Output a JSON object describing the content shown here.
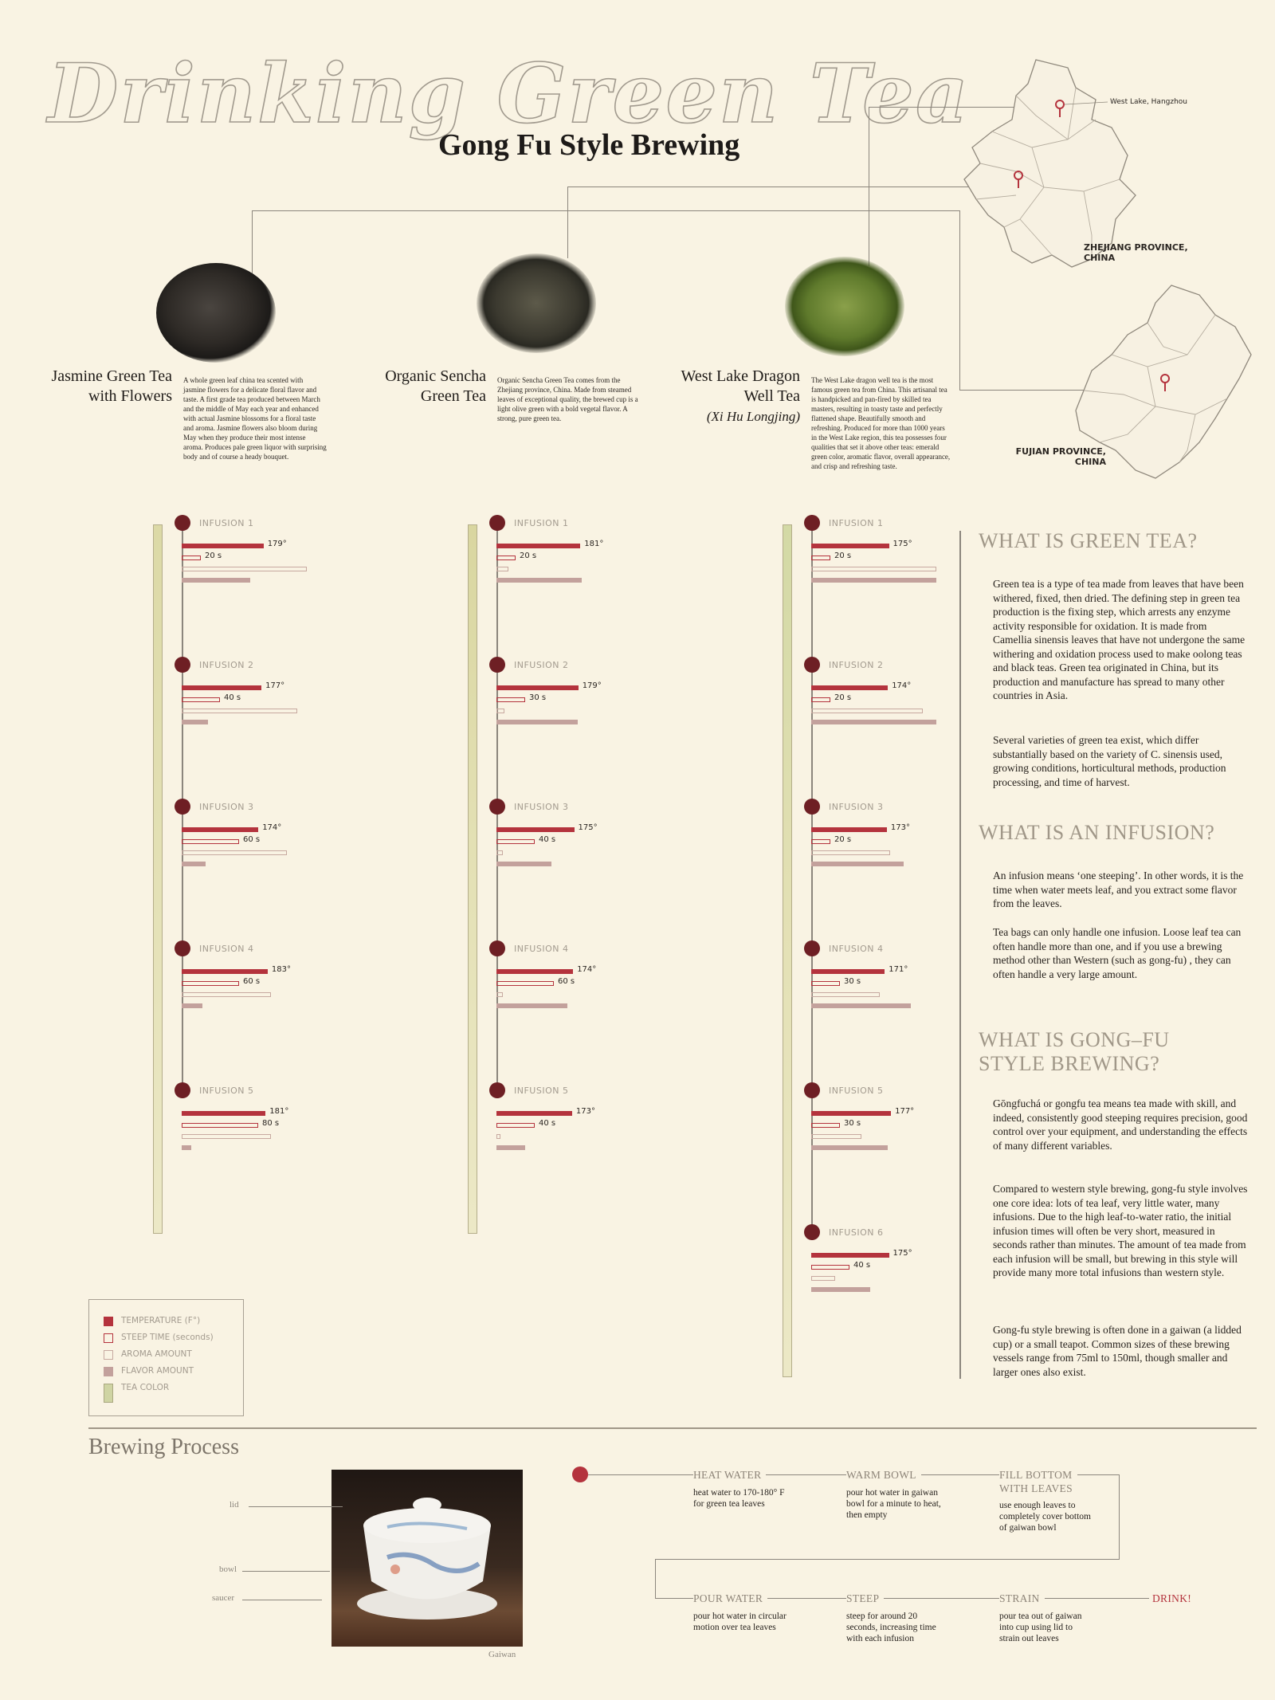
{
  "header": {
    "title": "Drinking Green Tea",
    "subtitle": "Gong Fu Style Brewing"
  },
  "teas": [
    {
      "name": "Jasmine Green Tea with Flowers",
      "name_line1": "Jasmine Green Tea",
      "name_line2": "with Flowers",
      "name_alt": "",
      "description": "A whole green leaf china tea scented with jasmine flowers for a delicate floral flavor and taste. A first grade tea produced between March and the middle of May each year and enhanced with actual Jasmine blossoms for a floral taste and aroma. Jasmine flowers also bloom during May when they produce their most intense aroma. Produces pale green liquor with surprising body and of course a heady bouquet.",
      "tea_color": "#dcd9a6",
      "infusions": [
        {
          "label": "INFUSION 1",
          "temperature": 179,
          "temp_text": "179°",
          "steep_seconds": 20,
          "steep_text": "20 s",
          "aroma": 0.95,
          "flavor": 0.52
        },
        {
          "label": "INFUSION 2",
          "temperature": 177,
          "temp_text": "177°",
          "steep_seconds": 40,
          "steep_text": "40 s",
          "aroma": 0.88,
          "flavor": 0.2
        },
        {
          "label": "INFUSION 3",
          "temperature": 174,
          "temp_text": "174°",
          "steep_seconds": 60,
          "steep_text": "60 s",
          "aroma": 0.8,
          "flavor": 0.18
        },
        {
          "label": "INFUSION 4",
          "temperature": 183,
          "temp_text": "183°",
          "steep_seconds": 60,
          "steep_text": "60 s",
          "aroma": 0.68,
          "flavor": 0.16
        },
        {
          "label": "INFUSION 5",
          "temperature": 181,
          "temp_text": "181°",
          "steep_seconds": 80,
          "steep_text": "80 s",
          "aroma": 0.68,
          "flavor": 0.07
        }
      ]
    },
    {
      "name": "Organic Sencha Green Tea",
      "name_line1": "Organic Sencha",
      "name_line2": "Green Tea",
      "name_alt": "",
      "description": "Organic Sencha Green Tea comes from the Zhejiang province, China. Made from steamed leaves of exceptional quality, the brewed cup is a light olive green with a bold vegetal flavor. A strong, pure green tea.",
      "tea_color": "#d9d6a0",
      "infusions": [
        {
          "label": "INFUSION 1",
          "temperature": 181,
          "temp_text": "181°",
          "steep_seconds": 20,
          "steep_text": "20 s",
          "aroma": 0.09,
          "flavor": 0.65
        },
        {
          "label": "INFUSION 2",
          "temperature": 179,
          "temp_text": "179°",
          "steep_seconds": 30,
          "steep_text": "30 s",
          "aroma": 0.06,
          "flavor": 0.62
        },
        {
          "label": "INFUSION 3",
          "temperature": 175,
          "temp_text": "175°",
          "steep_seconds": 40,
          "steep_text": "40 s",
          "aroma": 0.05,
          "flavor": 0.42
        },
        {
          "label": "INFUSION 4",
          "temperature": 174,
          "temp_text": "174°",
          "steep_seconds": 60,
          "steep_text": "60 s",
          "aroma": 0.05,
          "flavor": 0.54
        },
        {
          "label": "INFUSION 5",
          "temperature": 173,
          "temp_text": "173°",
          "steep_seconds": 40,
          "steep_text": "40 s",
          "aroma": 0.03,
          "flavor": 0.22
        }
      ]
    },
    {
      "name": "West Lake Dragon Well Tea",
      "name_line1": "West Lake Dragon",
      "name_line2": "Well Tea",
      "name_alt": "(Xi Hu Longjing)",
      "description": "The West Lake dragon well tea is the most famous green tea from China. This artisanal tea is handpicked and pan-fired by skilled tea masters, resulting in toasty taste and perfectly flattened shape. Beautifully smooth and refreshing. Produced for more than 1000 years in the West Lake region, this tea possesses four qualities that set it above other teas: emerald green color, aromatic flavor, overall appearance, and crisp and refreshing taste.",
      "tea_color": "#d3d9a5",
      "infusions": [
        {
          "label": "INFUSION 1",
          "temperature": 175,
          "temp_text": "175°",
          "steep_seconds": 20,
          "steep_text": "20 s",
          "aroma": 0.95,
          "flavor": 0.95
        },
        {
          "label": "INFUSION 2",
          "temperature": 174,
          "temp_text": "174°",
          "steep_seconds": 20,
          "steep_text": "20 s",
          "aroma": 0.85,
          "flavor": 0.95
        },
        {
          "label": "INFUSION 3",
          "temperature": 173,
          "temp_text": "173°",
          "steep_seconds": 20,
          "steep_text": "20 s",
          "aroma": 0.6,
          "flavor": 0.7
        },
        {
          "label": "INFUSION 4",
          "temperature": 171,
          "temp_text": "171°",
          "steep_seconds": 30,
          "steep_text": "30 s",
          "aroma": 0.52,
          "flavor": 0.76
        },
        {
          "label": "INFUSION 5",
          "temperature": 177,
          "temp_text": "177°",
          "steep_seconds": 30,
          "steep_text": "30 s",
          "aroma": 0.38,
          "flavor": 0.58
        },
        {
          "label": "INFUSION 6",
          "temperature": 175,
          "temp_text": "175°",
          "steep_seconds": 40,
          "steep_text": "40 s",
          "aroma": 0.18,
          "flavor": 0.45
        }
      ]
    }
  ],
  "legend": {
    "items": [
      {
        "label": "TEMPERATURE (F°)",
        "swatch": "temp"
      },
      {
        "label": "STEEP TIME (seconds)",
        "swatch": "steep"
      },
      {
        "label": "AROMA AMOUNT",
        "swatch": "aroma"
      },
      {
        "label": "FLAVOR AMOUNT",
        "swatch": "flavor"
      },
      {
        "label": "TEA COLOR",
        "swatch": "color"
      }
    ]
  },
  "maps": {
    "zhejiang_label": "ZHEJIANG  PROVINCE,\nCHINA",
    "zhejiang_label_1": "ZHEJIANG  PROVINCE,",
    "zhejiang_label_2": "CHINA",
    "west_lake_label": "West Lake, Hangzhou",
    "fujian_label_1": "FUJIAN PROVINCE,",
    "fujian_label_2": "CHINA"
  },
  "sidebar": {
    "q1_title": "WHAT IS GREEN TEA?",
    "q1_p1": "Green tea is a type of tea made from leaves that have been withered, fixed, then dried. The defining step in green tea production is the fixing step, which arrests any enzyme activity responsible for oxidation. It is made from Camellia sinensis leaves that have not undergone the same withering and oxidation process used to make oolong teas and black teas. Green tea originated in China, but its production and manufacture has spread to many other countries in Asia.",
    "q1_p2": "Several varieties of green tea exist, which differ substantially based on the variety of C. sinensis used, growing conditions, horticultural methods, production processing, and time of harvest.",
    "q2_title": "WHAT IS AN INFUSION?",
    "q2_p1": "An infusion means ‘one steeping’. In other words, it is the time when water meets leaf, and you extract some flavor from the leaves.",
    "q2_p2": "Tea bags can only handle one infusion. Loose leaf tea can often handle more than one, and if you use a brewing method other than Western (such as gong-fu) , they can often handle a very large amount.",
    "q3_title_1": "WHAT IS GONG–FU",
    "q3_title_2": "STYLE BREWING?",
    "q3_p1": "Gōngfuchá or gongfu tea means tea made with skill, and indeed, consistently good steeping requires precision, good control over your equipment, and understanding the effects of many different variables.",
    "q3_p2": "Compared to western style brewing, gong-fu style involves one core idea: lots of tea leaf, very little water, many infusions. Due to the high leaf-to-water ratio, the initial infusion times will often be very short, measured in seconds rather than minutes. The amount of tea made from each infusion will be small, but brewing in this style will provide many more total infusions than western style.",
    "q3_p3": "Gong-fu style brewing is often done in a gaiwan (a lidded cup) or a small teapot. Common sizes of these brewing vessels range from 75ml to 150ml, though smaller and larger ones also exist."
  },
  "brewing": {
    "title": "Brewing Process",
    "gaiwan_caption": "Gaiwan",
    "gaiwan_parts": {
      "lid": "lid",
      "bowl": "bowl",
      "saucer": "saucer"
    },
    "steps": [
      {
        "title": "HEAT WATER",
        "desc": "heat water to 170-180° F for green tea leaves"
      },
      {
        "title": "WARM BOWL",
        "desc": "pour hot water in gaiwan bowl for a minute to heat, then empty"
      },
      {
        "title": "FILL BOTTOM WITH LEAVES",
        "title_1": "FILL BOTTOM",
        "title_2": "WITH LEAVES",
        "desc": "use enough leaves to completely cover bottom of gaiwan bowl"
      },
      {
        "title": "POUR WATER",
        "desc": "pour hot water in circular motion over tea leaves"
      },
      {
        "title": "STEEP",
        "desc": "steep for around 20 seconds, increasing time with each infusion"
      },
      {
        "title": "STRAIN",
        "desc": "pour tea out of gaiwan into cup using lid to strain out leaves"
      }
    ],
    "final": "DRINK!"
  },
  "colors": {
    "accent_red": "#b4333d",
    "dark_dot": "#6e1f24",
    "muted_heading": "#a09788",
    "background": "#f9f3e3"
  }
}
